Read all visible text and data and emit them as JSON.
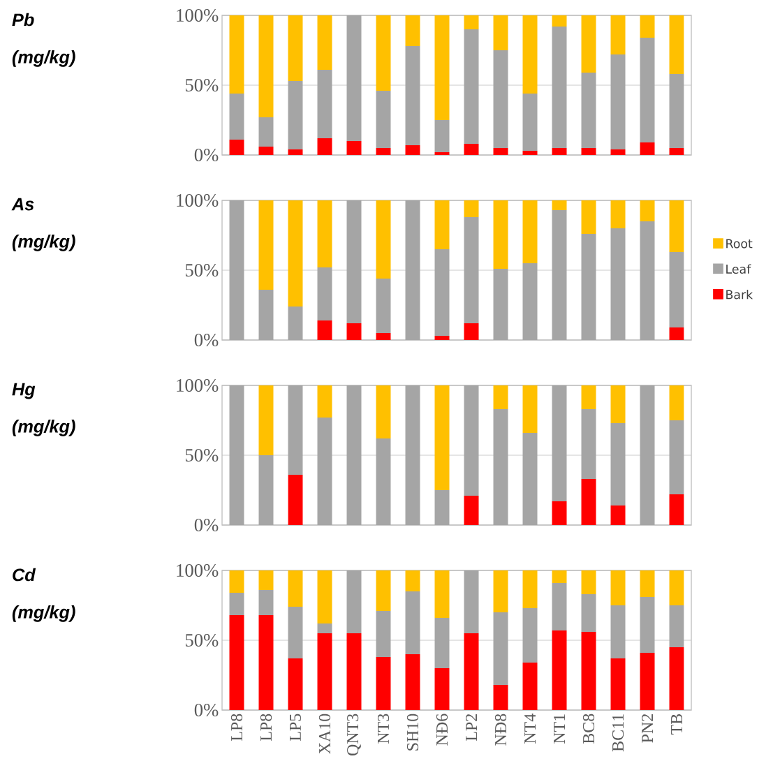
{
  "chart_data": [
    {
      "type": "bar",
      "stacked": true,
      "ylabel": "Pb (mg/kg)",
      "tick_labels": "y",
      "grid": "y",
      "categories": [
        null,
        null,
        null,
        null,
        null,
        null,
        null,
        null,
        null,
        null,
        null,
        null,
        null,
        null,
        null,
        null
      ],
      "ylim": [
        0,
        100
      ],
      "yticks": [
        {
          "value": 0,
          "label": "0%"
        },
        {
          "value": 50,
          "label": "50%"
        },
        {
          "value": 100,
          "label": "100%"
        }
      ],
      "series": [
        {
          "color": "#ff0000",
          "values": [
            11,
            6,
            4,
            12,
            10,
            5,
            7,
            2,
            8,
            5,
            3,
            5,
            5,
            4,
            9,
            5
          ]
        },
        {
          "color": "#a5a5a5",
          "values": [
            33,
            21,
            49,
            49,
            90,
            41,
            71,
            23,
            82,
            70,
            41,
            87,
            54,
            68,
            75,
            53
          ]
        },
        {
          "color": "#ffc000",
          "values": [
            56,
            73,
            47,
            39,
            0,
            54,
            22,
            75,
            10,
            25,
            56,
            8,
            41,
            28,
            16,
            42
          ]
        }
      ]
    },
    {
      "type": "bar",
      "stacked": true,
      "ylabel": "As (mg/kg)",
      "tick_labels": "y",
      "grid": "y",
      "legend": "right",
      "categories": [
        null,
        null,
        null,
        null,
        null,
        null,
        null,
        null,
        null,
        null,
        null,
        null,
        null,
        null,
        null,
        null
      ],
      "ylim": [
        0,
        100
      ],
      "yticks": [
        {
          "value": 0,
          "label": "0%"
        },
        {
          "value": 50,
          "label": "50%"
        },
        {
          "value": 100,
          "label": "100%"
        }
      ],
      "series": [
        {
          "name": "Bark",
          "color": "#ff0000",
          "values": [
            0,
            0,
            0,
            14,
            12,
            5,
            0,
            3,
            12,
            0,
            0,
            0,
            0,
            0,
            0,
            9
          ]
        },
        {
          "name": "Leaf",
          "color": "#a5a5a5",
          "values": [
            100,
            36,
            24,
            38,
            88,
            39,
            100,
            62,
            76,
            51,
            55,
            93,
            76,
            80,
            85,
            54
          ]
        },
        {
          "name": "Root",
          "color": "#ffc000",
          "values": [
            0,
            64,
            76,
            48,
            0,
            56,
            0,
            35,
            12,
            49,
            45,
            7,
            24,
            20,
            15,
            37
          ]
        }
      ]
    },
    {
      "type": "bar",
      "stacked": true,
      "ylabel": "Hg (mg/kg)",
      "tick_labels": "y",
      "grid": "y",
      "categories": [
        null,
        null,
        null,
        null,
        null,
        null,
        null,
        null,
        null,
        null,
        null,
        null,
        null,
        null,
        null,
        null
      ],
      "ylim": [
        0,
        100
      ],
      "yticks": [
        {
          "value": 0,
          "label": "0%"
        },
        {
          "value": 50,
          "label": "50%"
        },
        {
          "value": 100,
          "label": "100%"
        }
      ],
      "series": [
        {
          "color": "#ff0000",
          "values": [
            0,
            0,
            36,
            0,
            0,
            0,
            0,
            0,
            21,
            0,
            0,
            17,
            33,
            14,
            0,
            22
          ]
        },
        {
          "color": "#a5a5a5",
          "values": [
            100,
            50,
            64,
            77,
            100,
            62,
            100,
            25,
            79,
            83,
            66,
            83,
            50,
            59,
            100,
            53
          ]
        },
        {
          "color": "#ffc000",
          "values": [
            0,
            50,
            0,
            23,
            0,
            38,
            0,
            75,
            0,
            17,
            34,
            0,
            17,
            27,
            0,
            25
          ]
        }
      ]
    },
    {
      "type": "bar",
      "stacked": true,
      "ylabel": "Cd (mg/kg)",
      "grid": "y",
      "categories": [
        "LP8",
        "LP8",
        "LP5",
        "XA10",
        "QNT3",
        "NT3",
        "SH10",
        "NĐ6",
        "LP2",
        "NĐ8",
        "NT4",
        "NT1",
        "BC8",
        "BC11",
        "PN2",
        "TB"
      ],
      "ylim": [
        0,
        100
      ],
      "yticks": [
        {
          "value": 0,
          "label": "0%"
        },
        {
          "value": 50,
          "label": "50%"
        },
        {
          "value": 100,
          "label": "100%"
        }
      ],
      "series": [
        {
          "color": "#ff0000",
          "values": [
            68,
            68,
            37,
            55,
            55,
            38,
            40,
            30,
            55,
            18,
            34,
            57,
            56,
            37,
            41,
            45
          ]
        },
        {
          "color": "#a5a5a5",
          "values": [
            16,
            18,
            37,
            7,
            45,
            33,
            45,
            36,
            45,
            52,
            39,
            34,
            27,
            38,
            40,
            30
          ]
        },
        {
          "color": "#ffc000",
          "values": [
            16,
            14,
            26,
            38,
            0,
            29,
            15,
            34,
            0,
            30,
            27,
            9,
            17,
            25,
            19,
            25
          ]
        }
      ]
    }
  ]
}
